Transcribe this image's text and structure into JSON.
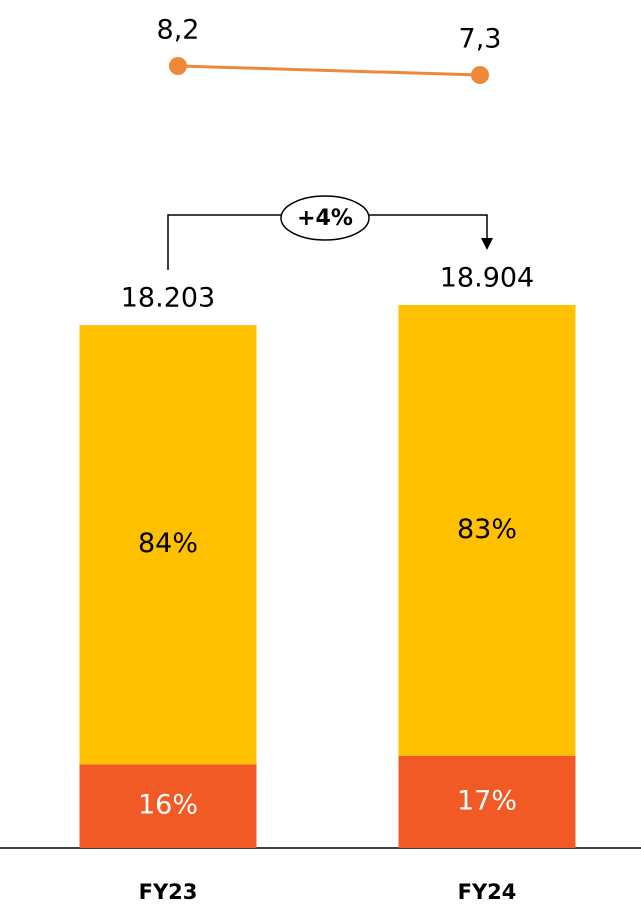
{
  "chart_data": [
    {
      "type": "line",
      "values": [
        8.2,
        7.3
      ],
      "value_labels": [
        "8,2",
        "7,3"
      ],
      "color": "#f0883a"
    },
    {
      "type": "bar",
      "categories": [
        "FY23",
        "FY24"
      ],
      "totals": {
        "values": [
          18203,
          18904
        ],
        "value_labels": [
          "18.203",
          "18.904"
        ]
      },
      "series": [
        {
          "color": "#f15a24",
          "values": [
            16,
            17
          ],
          "value_labels": [
            "16%",
            "17%"
          ]
        },
        {
          "color": "#ffc000",
          "values": [
            84,
            83
          ],
          "value_labels": [
            "84%",
            "83%"
          ]
        }
      ],
      "annotation": "+4%"
    }
  ]
}
